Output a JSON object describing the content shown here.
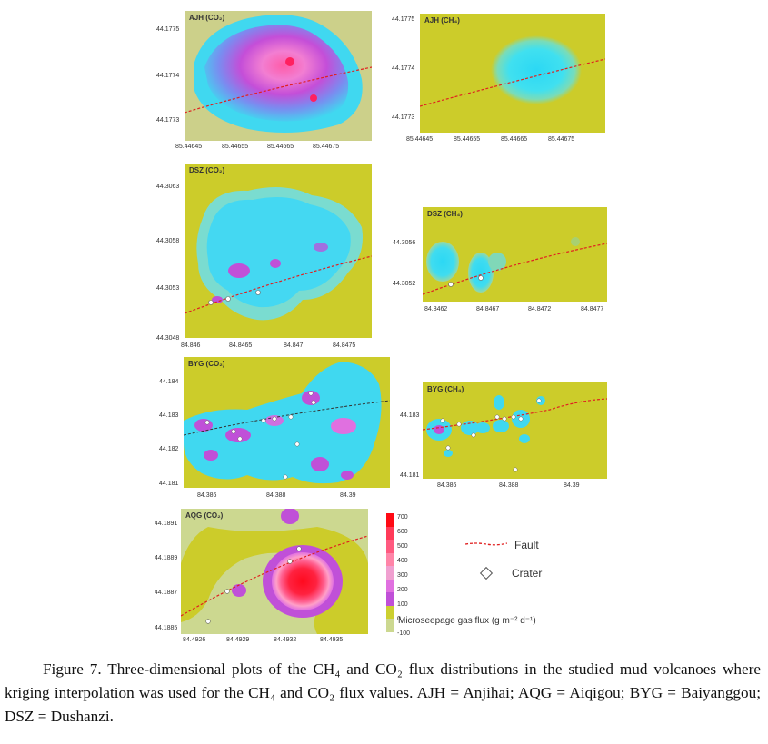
{
  "figure": {
    "panels": [
      {
        "id": "ajh-co2",
        "title": "AJH (CO₂)",
        "yticks": [
          "44.1775",
          "44.1774",
          "44.1773"
        ],
        "xticks": [
          "85.44645",
          "85.44655",
          "85.44665",
          "85.44675"
        ]
      },
      {
        "id": "ajh-ch4",
        "title": "AJH (CH₄)",
        "yticks": [
          "44.1775",
          "44.1774",
          "44.1773"
        ],
        "xticks": [
          "85.44645",
          "85.44655",
          "85.44665",
          "85.44675"
        ]
      },
      {
        "id": "dsz-co2",
        "title": "DSZ (CO₂)",
        "yticks": [
          "44.3063",
          "44.3058",
          "44.3053",
          "44.3048"
        ],
        "xticks": [
          "84.846",
          "84.8465",
          "84.847",
          "84.8475"
        ]
      },
      {
        "id": "dsz-ch4",
        "title": "DSZ (CH₄)",
        "yticks": [
          "44.3056",
          "44.3052"
        ],
        "xticks": [
          "84.8462",
          "84.8467",
          "84.8472",
          "84.8477"
        ]
      },
      {
        "id": "byg-co2",
        "title": "BYG (CO₂)",
        "yticks": [
          "44.184",
          "44.183",
          "44.182",
          "44.181"
        ],
        "xticks": [
          "84.386",
          "84.388",
          "84.39"
        ]
      },
      {
        "id": "byg-ch4",
        "title": "BYG (CH₄)",
        "yticks": [
          "44.183",
          "44.181"
        ],
        "xticks": [
          "84.386",
          "84.388",
          "84.39"
        ]
      },
      {
        "id": "aqg-co2",
        "title": "AQG (CO₂)",
        "yticks": [
          "44.1891",
          "44.1889",
          "44.1887",
          "44.1885"
        ],
        "xticks": [
          "84.4926",
          "84.4929",
          "84.4932",
          "84.4935"
        ]
      }
    ],
    "colorbar": {
      "labels": [
        "700",
        "600",
        "500",
        "400",
        "300",
        "200",
        "100",
        "0",
        "-100"
      ],
      "colors": [
        "#ff0a14",
        "#ff3a58",
        "#ff5a80",
        "#ff85a8",
        "#f0a0d0",
        "#e070e0",
        "#c050d8",
        "#ccd030",
        "#ccd890"
      ],
      "title": "Microseepage gas flux (g m⁻² d⁻¹)"
    },
    "legend": {
      "fault_label": "Fault",
      "crater_label": "Crater",
      "fault_color": "#e02020"
    },
    "colors": {
      "background": "#cccc2a",
      "low_flux": "#40d8f0",
      "mid_flux": "#d060e0",
      "high_flux": "#ff0a1e"
    },
    "caption": "Figure 7. Three-dimensional plots of the CH₄ and CO₂ flux distributions in the studied mud volcanoes where kriging interpolation was used for the CH₄ and CO₂ flux values. AJH = Anjihai; AQG = Aiqigou; BYG = Baiyanggou; DSZ = Dushanzi."
  }
}
